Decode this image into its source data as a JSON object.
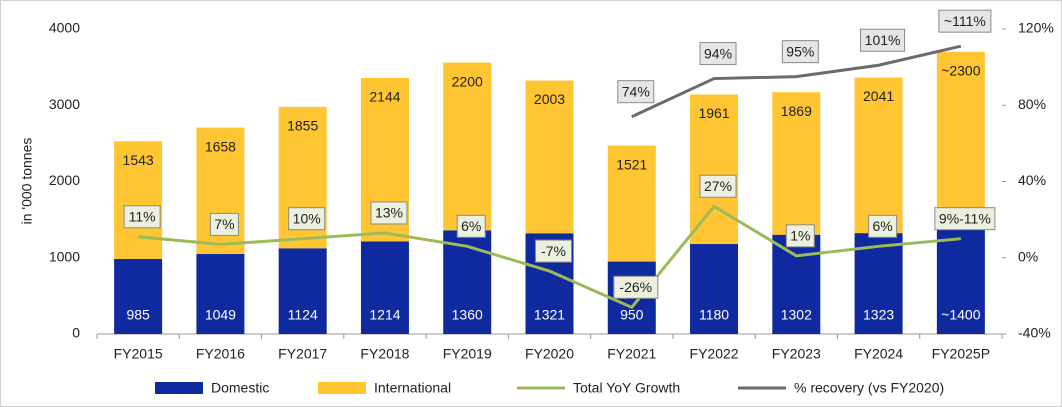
{
  "chart_data": {
    "type": "bar",
    "categories": [
      "FY2015",
      "FY2016",
      "FY2017",
      "FY2018",
      "FY2019",
      "FY2020",
      "FY2021",
      "FY2022",
      "FY2023",
      "FY2024",
      "FY2025P"
    ],
    "y_label": "in '000 tonnes",
    "ylim": [
      0,
      4000
    ],
    "yticks": [
      0,
      1000,
      2000,
      3000,
      4000
    ],
    "y2lim": [
      -40,
      120
    ],
    "y2ticks": [
      {
        "value": -40,
        "label": "-40%"
      },
      {
        "value": 0,
        "label": "0%"
      },
      {
        "value": 40,
        "label": "40%"
      },
      {
        "value": 80,
        "label": "80%"
      },
      {
        "value": 120,
        "label": "120%"
      }
    ],
    "stacked": true,
    "legend": "bottom",
    "series": [
      {
        "name": "Domestic",
        "type": "bar",
        "color": "#0f2a9f",
        "values": [
          985,
          1049,
          1124,
          1214,
          1360,
          1321,
          950,
          1180,
          1302,
          1323,
          1400
        ],
        "value_labels": [
          "985",
          "1049",
          "1124",
          "1214",
          "1360",
          "1321",
          "950",
          "1180",
          "1302",
          "1323",
          "~1400"
        ]
      },
      {
        "name": "International",
        "type": "bar",
        "color": "#ffc533",
        "values": [
          1543,
          1658,
          1855,
          2144,
          2200,
          2003,
          1521,
          1961,
          1869,
          2041,
          2300
        ],
        "value_labels": [
          "1543",
          "1658",
          "1855",
          "2144",
          "2200",
          "2003",
          "1521",
          "1961",
          "1869",
          "2041",
          "~2300"
        ]
      },
      {
        "name": "Total YoY Growth",
        "type": "line",
        "axis": "y2",
        "color": "#9bbb59",
        "values": [
          11,
          7,
          10,
          13,
          6,
          -7,
          -26,
          27,
          1,
          6,
          10
        ],
        "value_labels": [
          "11%",
          "7%",
          "10%",
          "13%",
          "6%",
          "-7%",
          "-26%",
          "27%",
          "1%",
          "6%",
          "9%-11%"
        ]
      },
      {
        "name": "% recovery (vs FY2020)",
        "type": "line",
        "axis": "y2",
        "color": "#6b6b6b",
        "values": [
          null,
          null,
          null,
          null,
          null,
          null,
          74,
          94,
          95,
          101,
          111
        ],
        "value_labels": [
          null,
          null,
          null,
          null,
          null,
          null,
          "74%",
          "94%",
          "95%",
          "101%",
          "~111%"
        ]
      }
    ]
  }
}
